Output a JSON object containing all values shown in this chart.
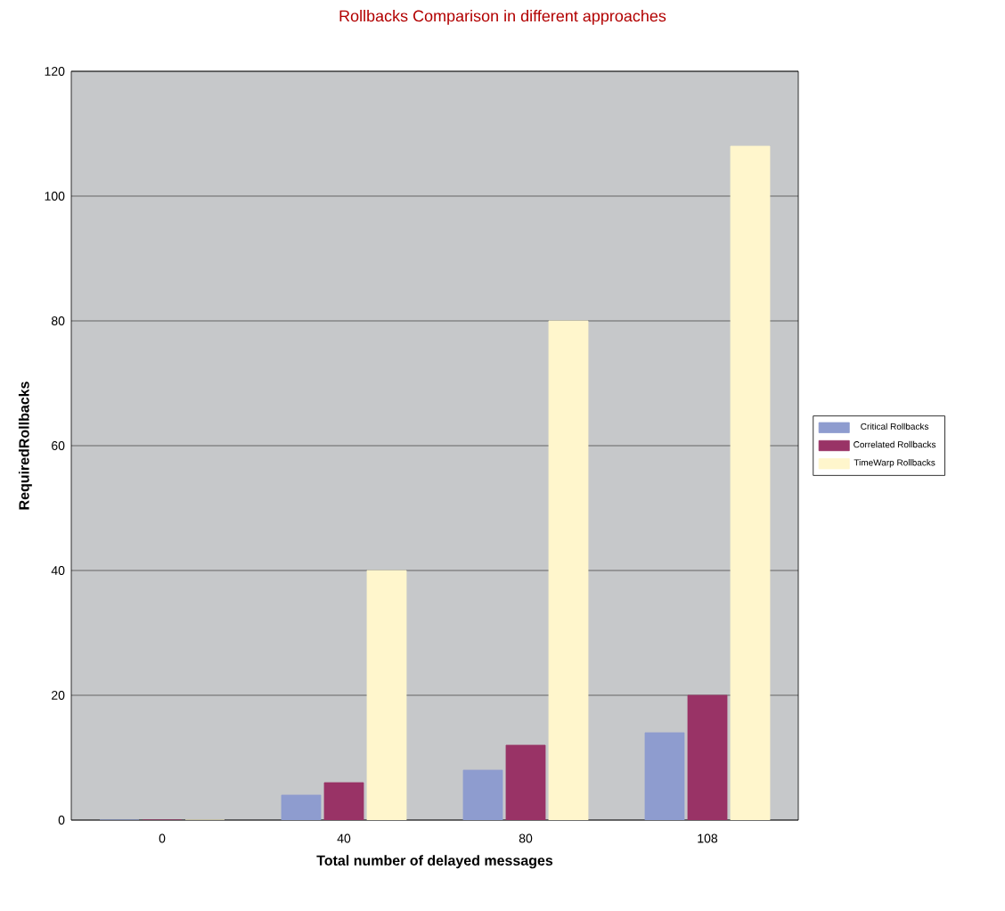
{
  "chart_data": {
    "type": "bar",
    "title": "Rollbacks Comparison in different approaches",
    "xlabel": "Total number of delayed messages",
    "ylabel": "RequiredRollbacks",
    "categories": [
      "0",
      "40",
      "80",
      "108"
    ],
    "series": [
      {
        "name": "Critical Rollbacks",
        "color": "#8e9ccf",
        "values": [
          0,
          4,
          8,
          14
        ]
      },
      {
        "name": "Correlated Rollbacks",
        "color": "#993366",
        "values": [
          0,
          6,
          12,
          20
        ]
      },
      {
        "name": "TimeWarp Rollbacks",
        "color": "#fff6cc",
        "values": [
          0,
          40,
          80,
          108
        ]
      }
    ],
    "ylim": [
      0,
      120
    ],
    "yticks": [
      0,
      20,
      40,
      60,
      80,
      100,
      120
    ],
    "grid": "y",
    "legend": "right"
  }
}
